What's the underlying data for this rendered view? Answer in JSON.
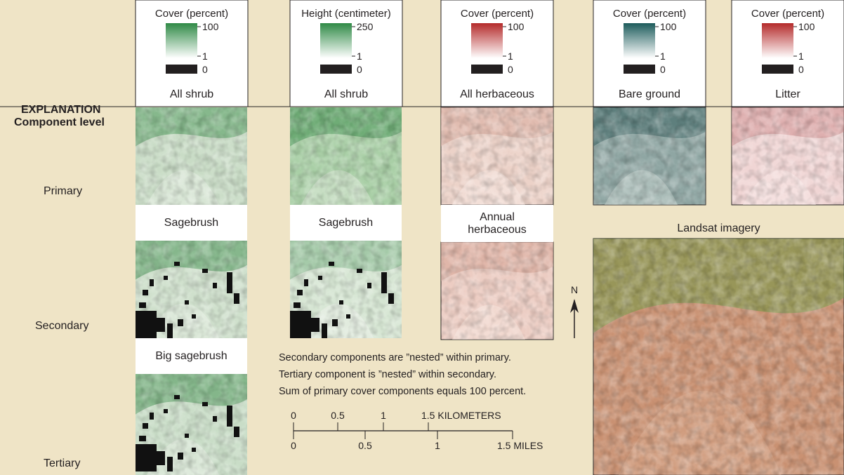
{
  "explanation": "EXPLANATION",
  "component_level": "Component level",
  "rows": [
    "Primary",
    "Secondary",
    "Tertiary"
  ],
  "legends": [
    {
      "title": "Cover (percent)",
      "max": 100,
      "min": 1,
      "zero": 0,
      "label": "All shrub",
      "color": "#2f8a46"
    },
    {
      "title": "Height (centimeter)",
      "max": 250,
      "min": 1,
      "zero": 0,
      "label": "All shrub",
      "color": "#2f8a46"
    },
    {
      "title": "Cover (percent)",
      "max": 100,
      "min": 1,
      "zero": 0,
      "label": "All herbaceous",
      "color": "#b42a2a"
    },
    {
      "title": "Cover (percent)",
      "max": 100,
      "min": 1,
      "zero": 0,
      "label": "Bare ground",
      "color": "#1d5c5c"
    },
    {
      "title": "Cover (percent)",
      "max": 100,
      "min": 1,
      "zero": 0,
      "label": "Litter",
      "color": "#b42a2a"
    }
  ],
  "map_labels": [
    "Sagebrush",
    "Sagebrush",
    "Annual herbaceous",
    "Big sagebrush"
  ],
  "landsat": "Landsat imagery",
  "north": "N",
  "notes": [
    "Secondary components are ”nested” within primary.",
    "Tertiary component is ”nested” within secondary.",
    "Sum of primary cover components equals 100 percent."
  ],
  "scale": {
    "km": [
      0,
      0.5,
      1,
      "1.5 KILOMETERS"
    ],
    "miles": [
      0,
      0.5,
      1,
      "1.5 MILES"
    ]
  }
}
